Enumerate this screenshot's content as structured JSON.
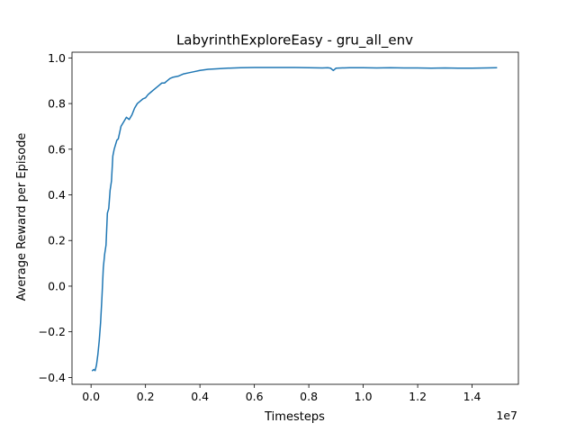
{
  "chart_data": {
    "type": "line",
    "title": "LabyrinthExploreEasy - gru_all_env",
    "xlabel": "Timesteps",
    "ylabel": "Average Reward per Episode",
    "x_offset_label": "1e7",
    "xlim": [
      -0.07,
      1.57
    ],
    "ylim": [
      -0.43,
      1.025
    ],
    "x_ticks": [
      0.0,
      0.2,
      0.4,
      0.6,
      0.8,
      1.0,
      1.2,
      1.4
    ],
    "x_tick_labels": [
      "0.0",
      "0.2",
      "0.4",
      "0.6",
      "0.8",
      "1.0",
      "1.2",
      "1.4"
    ],
    "y_ticks": [
      -0.4,
      -0.2,
      0.0,
      0.2,
      0.4,
      0.6,
      0.8,
      1.0
    ],
    "y_tick_labels": [
      "−0.4",
      "−0.2",
      "0.0",
      "0.2",
      "0.4",
      "0.6",
      "0.8",
      "1.0"
    ],
    "grid": false,
    "series": [
      {
        "color": "#1f77b4",
        "x": [
          0.005,
          0.01,
          0.015,
          0.02,
          0.025,
          0.03,
          0.035,
          0.04,
          0.045,
          0.05,
          0.055,
          0.06,
          0.065,
          0.07,
          0.075,
          0.08,
          0.085,
          0.09,
          0.095,
          0.1,
          0.11,
          0.12,
          0.13,
          0.14,
          0.15,
          0.16,
          0.17,
          0.18,
          0.19,
          0.2,
          0.21,
          0.22,
          0.23,
          0.24,
          0.25,
          0.26,
          0.27,
          0.28,
          0.29,
          0.3,
          0.32,
          0.34,
          0.36,
          0.38,
          0.4,
          0.43,
          0.46,
          0.5,
          0.55,
          0.6,
          0.65,
          0.7,
          0.75,
          0.8,
          0.85,
          0.87,
          0.88,
          0.89,
          0.9,
          0.92,
          0.95,
          1.0,
          1.05,
          1.1,
          1.15,
          1.2,
          1.25,
          1.3,
          1.35,
          1.4,
          1.45,
          1.49
        ],
        "y": [
          -0.37,
          -0.365,
          -0.37,
          -0.345,
          -0.3,
          -0.24,
          -0.16,
          -0.05,
          0.08,
          0.14,
          0.18,
          0.32,
          0.34,
          0.42,
          0.46,
          0.57,
          0.6,
          0.62,
          0.64,
          0.645,
          0.7,
          0.72,
          0.74,
          0.73,
          0.75,
          0.78,
          0.8,
          0.81,
          0.82,
          0.825,
          0.84,
          0.85,
          0.86,
          0.87,
          0.88,
          0.89,
          0.89,
          0.9,
          0.91,
          0.915,
          0.92,
          0.93,
          0.935,
          0.94,
          0.945,
          0.95,
          0.952,
          0.955,
          0.957,
          0.958,
          0.958,
          0.958,
          0.958,
          0.957,
          0.956,
          0.957,
          0.955,
          0.945,
          0.955,
          0.956,
          0.957,
          0.957,
          0.956,
          0.957,
          0.956,
          0.956,
          0.955,
          0.956,
          0.955,
          0.955,
          0.956,
          0.957
        ]
      }
    ]
  }
}
